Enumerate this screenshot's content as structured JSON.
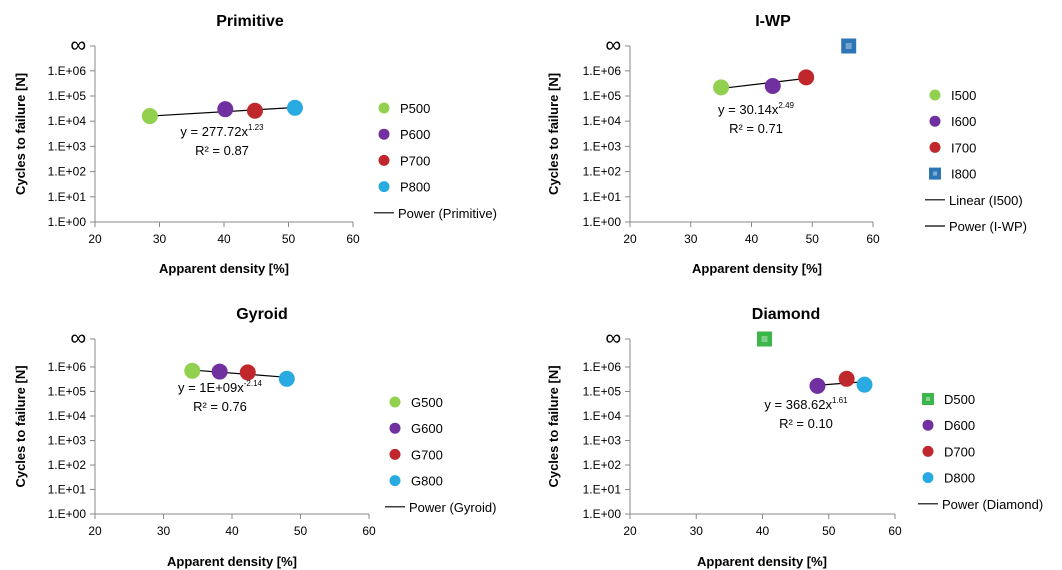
{
  "chart_data": [
    {
      "type": "scatter",
      "title": "Primitive",
      "xlabel": "Apparent density [%]",
      "ylabel": "Cycles to failure [N]",
      "xlim": [
        20,
        60
      ],
      "x_ticks": [
        "20",
        "30",
        "40",
        "50",
        "60"
      ],
      "y_ticks": [
        "1.E+00",
        "1.E+01",
        "1.E+02",
        "1.E+03",
        "1.E+04",
        "1.E+05",
        "1.E+06",
        "∞"
      ],
      "y_scale": "log",
      "series": [
        {
          "name": "P500",
          "marker": "circle",
          "color": "#92d050",
          "x": [
            28.5
          ],
          "y": [
            16000
          ]
        },
        {
          "name": "P600",
          "marker": "circle",
          "color": "#7030a0",
          "x": [
            40.2
          ],
          "y": [
            30000
          ]
        },
        {
          "name": "P700",
          "marker": "circle",
          "color": "#c0272d",
          "x": [
            44.8
          ],
          "y": [
            26000
          ]
        },
        {
          "name": "P800",
          "marker": "circle",
          "color": "#29abe2",
          "x": [
            51.0
          ],
          "y": [
            34000
          ]
        }
      ],
      "trendlines": [
        {
          "name": "Power (Primitive)",
          "x_range": [
            28.5,
            51.0
          ],
          "y_range": [
            16000,
            35000
          ]
        }
      ],
      "equation": {
        "base": "y = 277.72x",
        "exp": "1.23",
        "r2": "R² = 0.87"
      }
    },
    {
      "type": "scatter",
      "title": "I-WP",
      "xlabel": "Apparent density [%]",
      "ylabel": "Cycles to failure [N]",
      "xlim": [
        20,
        60
      ],
      "x_ticks": [
        "20",
        "30",
        "40",
        "50",
        "60"
      ],
      "y_ticks": [
        "1.E+00",
        "1.E+01",
        "1.E+02",
        "1.E+03",
        "1.E+04",
        "1.E+05",
        "1.E+06",
        "∞"
      ],
      "y_scale": "log",
      "series": [
        {
          "name": "I500",
          "marker": "circle",
          "color": "#92d050",
          "x": [
            35.0
          ],
          "y": [
            220000
          ]
        },
        {
          "name": "I600",
          "marker": "circle",
          "color": "#7030a0",
          "x": [
            43.5
          ],
          "y": [
            250000
          ]
        },
        {
          "name": "I700",
          "marker": "circle",
          "color": "#c0272d",
          "x": [
            49.0
          ],
          "y": [
            550000
          ]
        },
        {
          "name": "I800",
          "marker": "square",
          "color": "#2e75b6",
          "x": [
            56.0
          ],
          "y": [
            "∞"
          ]
        }
      ],
      "trendlines": [
        {
          "name": "Linear (I500)",
          "x_range": null,
          "y_range": null
        },
        {
          "name": "Power (I-WP)",
          "x_range": [
            35.0,
            49.0
          ],
          "y_range": [
            200000,
            500000
          ]
        }
      ],
      "equation": {
        "base": "y = 30.14x",
        "exp": "2.49",
        "r2": "R² = 0.71"
      }
    },
    {
      "type": "scatter",
      "title": "Gyroid",
      "xlabel": "Apparent density [%]",
      "ylabel": "Cycles to failure [N]",
      "xlim": [
        20,
        60
      ],
      "x_ticks": [
        "20",
        "30",
        "40",
        "50",
        "60"
      ],
      "y_ticks": [
        "1.E+00",
        "1.E+01",
        "1.E+02",
        "1.E+03",
        "1.E+04",
        "1.E+05",
        "1.E+06",
        "∞"
      ],
      "y_scale": "log",
      "series": [
        {
          "name": "G500",
          "marker": "circle",
          "color": "#92d050",
          "x": [
            34.2
          ],
          "y": [
            700000
          ]
        },
        {
          "name": "G600",
          "marker": "circle",
          "color": "#7030a0",
          "x": [
            38.2
          ],
          "y": [
            650000
          ]
        },
        {
          "name": "G700",
          "marker": "circle",
          "color": "#c0272d",
          "x": [
            42.3
          ],
          "y": [
            600000
          ]
        },
        {
          "name": "G800",
          "marker": "circle",
          "color": "#29abe2",
          "x": [
            48.0
          ],
          "y": [
            330000
          ]
        }
      ],
      "trendlines": [
        {
          "name": "Power (Gyroid)",
          "x_range": [
            34.2,
            48.0
          ],
          "y_range": [
            750000,
            380000
          ]
        }
      ],
      "equation": {
        "base": "y = 1E+09x",
        "exp": "-2.14",
        "r2": "R² = 0.76"
      }
    },
    {
      "type": "scatter",
      "title": "Diamond",
      "xlabel": "Apparent density [%]",
      "ylabel": "Cycles to failure [N]",
      "xlim": [
        20,
        60
      ],
      "x_ticks": [
        "20",
        "30",
        "40",
        "50",
        "60"
      ],
      "y_ticks": [
        "1.E+00",
        "1.E+01",
        "1.E+02",
        "1.E+03",
        "1.E+04",
        "1.E+05",
        "1.E+06",
        "∞"
      ],
      "y_scale": "log",
      "series": [
        {
          "name": "D500",
          "marker": "square",
          "color": "#3cb54a",
          "x": [
            40.3
          ],
          "y": [
            "∞"
          ]
        },
        {
          "name": "D600",
          "marker": "circle",
          "color": "#7030a0",
          "x": [
            48.3
          ],
          "y": [
            170000
          ]
        },
        {
          "name": "D700",
          "marker": "circle",
          "color": "#c0272d",
          "x": [
            52.7
          ],
          "y": [
            330000
          ]
        },
        {
          "name": "D800",
          "marker": "circle",
          "color": "#29abe2",
          "x": [
            55.4
          ],
          "y": [
            190000
          ]
        }
      ],
      "trendlines": [
        {
          "name": "Power (Diamond)",
          "x_range": [
            48.3,
            55.4
          ],
          "y_range": [
            180000,
            250000
          ]
        }
      ],
      "equation": {
        "base": "y = 368.62x",
        "exp": "1.61",
        "r2": "R² = 0.10"
      }
    }
  ]
}
